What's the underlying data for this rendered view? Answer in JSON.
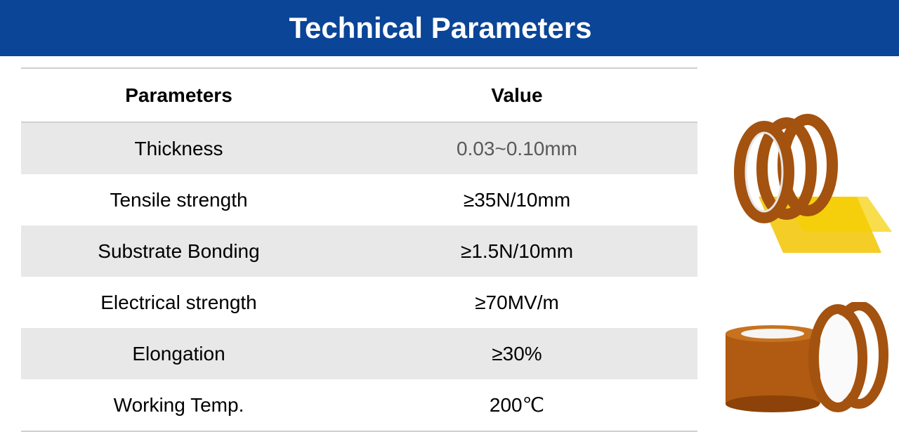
{
  "header": {
    "title": "Technical Parameters"
  },
  "table": {
    "columns": [
      "Parameters",
      "Value"
    ],
    "rows": [
      [
        "Thickness",
        "0.03~0.10mm"
      ],
      [
        "Tensile strength",
        "≥35N/10mm"
      ],
      [
        "Substrate Bonding",
        "≥1.5N/10mm"
      ],
      [
        "Electrical strength",
        "≥70MV/m"
      ],
      [
        "Elongation",
        "≥30%"
      ],
      [
        "Working Temp.",
        "200℃"
      ]
    ]
  }
}
